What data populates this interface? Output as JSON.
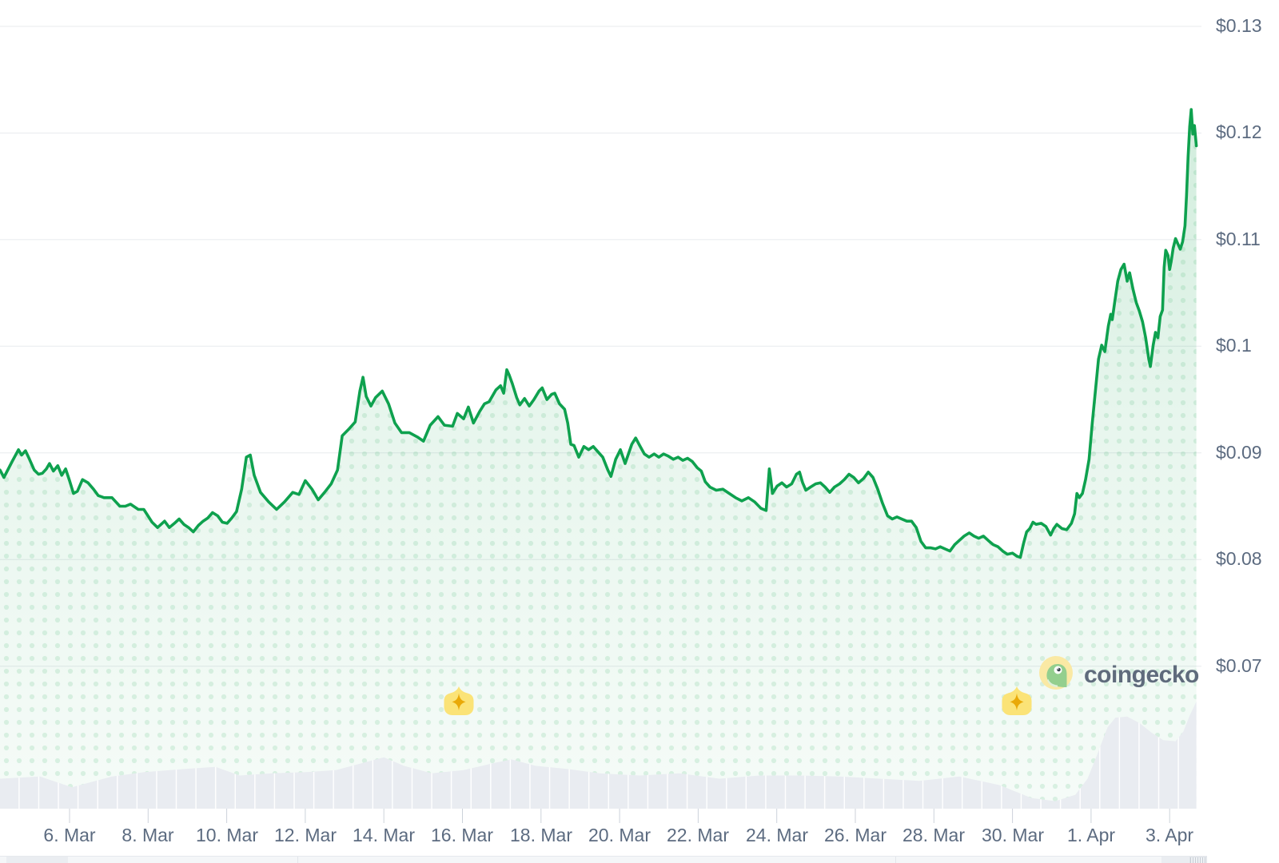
{
  "watermark": {
    "text": "coingecko"
  },
  "colors": {
    "line_green": "#0EA14E",
    "fill_green": "#15A350",
    "volume_gray": "#E9ECF1",
    "grid": "#E8EBEE",
    "tick": "#CCD2DA",
    "axis_text": "#5C6B80",
    "badge_yellow": "#FBE377",
    "badge_star": "#E9A908",
    "logo_circle": "#FAE9A4",
    "logo_gecko": "#93CF8E",
    "logo_text": "#5F6B7C"
  },
  "chart_data": {
    "type": "line",
    "title": "",
    "subtitle": "",
    "x_unit": "day of March (32 = 1 Apr, 34 = 3 Apr)",
    "y_unit": "USD price",
    "grid": "horizontal only",
    "legend": "none",
    "y_axis": {
      "labels": [
        "$0.13",
        "$0.12",
        "$0.11",
        "$0.1",
        "$0.09",
        "$0.08",
        "$0.07"
      ],
      "values": [
        0.13,
        0.12,
        0.11,
        0.1,
        0.09,
        0.08,
        0.07
      ],
      "range": [
        0.07,
        0.13
      ],
      "side": "right"
    },
    "x_axis": {
      "labels": [
        "6. Mar",
        "8. Mar",
        "10. Mar",
        "12. Mar",
        "14. Mar",
        "16. Mar",
        "18. Mar",
        "20. Mar",
        "22. Mar",
        "24. Mar",
        "26. Mar",
        "28. Mar",
        "30. Mar",
        "1. Apr",
        "3. Apr"
      ],
      "tick_days": [
        6,
        8,
        10,
        12,
        14,
        16,
        18,
        20,
        22,
        24,
        26,
        28,
        30,
        32,
        34
      ],
      "visible_day_range": [
        4.23,
        34.7
      ]
    },
    "price_series": [
      [
        4.23,
        0.0884
      ],
      [
        4.33,
        0.0877
      ],
      [
        4.54,
        0.0892
      ],
      [
        4.7,
        0.0903
      ],
      [
        4.78,
        0.0898
      ],
      [
        4.88,
        0.0902
      ],
      [
        4.98,
        0.0894
      ],
      [
        5.1,
        0.0884
      ],
      [
        5.21,
        0.088
      ],
      [
        5.31,
        0.0881
      ],
      [
        5.41,
        0.0885
      ],
      [
        5.49,
        0.089
      ],
      [
        5.59,
        0.0883
      ],
      [
        5.7,
        0.0888
      ],
      [
        5.8,
        0.0879
      ],
      [
        5.9,
        0.0885
      ],
      [
        6.0,
        0.0874
      ],
      [
        6.1,
        0.0862
      ],
      [
        6.2,
        0.0864
      ],
      [
        6.33,
        0.0875
      ],
      [
        6.47,
        0.0872
      ],
      [
        6.61,
        0.0866
      ],
      [
        6.73,
        0.086
      ],
      [
        6.88,
        0.0858
      ],
      [
        7.08,
        0.0858
      ],
      [
        7.28,
        0.085
      ],
      [
        7.42,
        0.085
      ],
      [
        7.55,
        0.0852
      ],
      [
        7.75,
        0.0847
      ],
      [
        7.89,
        0.0847
      ],
      [
        8.1,
        0.0835
      ],
      [
        8.24,
        0.083
      ],
      [
        8.42,
        0.0836
      ],
      [
        8.54,
        0.083
      ],
      [
        8.67,
        0.0834
      ],
      [
        8.79,
        0.0838
      ],
      [
        8.91,
        0.0833
      ],
      [
        9.03,
        0.083
      ],
      [
        9.15,
        0.0826
      ],
      [
        9.28,
        0.0832
      ],
      [
        9.4,
        0.0836
      ],
      [
        9.52,
        0.0839
      ],
      [
        9.64,
        0.0844
      ],
      [
        9.77,
        0.0841
      ],
      [
        9.89,
        0.0835
      ],
      [
        10.01,
        0.0834
      ],
      [
        10.13,
        0.0839
      ],
      [
        10.25,
        0.0845
      ],
      [
        10.38,
        0.0866
      ],
      [
        10.5,
        0.0896
      ],
      [
        10.6,
        0.0898
      ],
      [
        10.7,
        0.0879
      ],
      [
        10.86,
        0.0863
      ],
      [
        11.07,
        0.0854
      ],
      [
        11.27,
        0.0847
      ],
      [
        11.47,
        0.0854
      ],
      [
        11.68,
        0.0863
      ],
      [
        11.84,
        0.0861
      ],
      [
        12.0,
        0.0874
      ],
      [
        12.17,
        0.0866
      ],
      [
        12.33,
        0.0856
      ],
      [
        12.49,
        0.0863
      ],
      [
        12.66,
        0.0871
      ],
      [
        12.82,
        0.0884
      ],
      [
        12.94,
        0.0916
      ],
      [
        13.1,
        0.0922
      ],
      [
        13.27,
        0.0929
      ],
      [
        13.39,
        0.0958
      ],
      [
        13.47,
        0.0971
      ],
      [
        13.55,
        0.0953
      ],
      [
        13.67,
        0.0944
      ],
      [
        13.79,
        0.0952
      ],
      [
        13.96,
        0.0958
      ],
      [
        14.12,
        0.0946
      ],
      [
        14.28,
        0.0928
      ],
      [
        14.45,
        0.0919
      ],
      [
        14.65,
        0.0919
      ],
      [
        14.85,
        0.0915
      ],
      [
        15.01,
        0.0911
      ],
      [
        15.18,
        0.0926
      ],
      [
        15.38,
        0.0934
      ],
      [
        15.54,
        0.0926
      ],
      [
        15.75,
        0.0925
      ],
      [
        15.87,
        0.0937
      ],
      [
        16.03,
        0.0932
      ],
      [
        16.15,
        0.0943
      ],
      [
        16.28,
        0.0928
      ],
      [
        16.44,
        0.0939
      ],
      [
        16.56,
        0.0946
      ],
      [
        16.68,
        0.0948
      ],
      [
        16.85,
        0.0959
      ],
      [
        16.97,
        0.0963
      ],
      [
        17.05,
        0.0956
      ],
      [
        17.13,
        0.0978
      ],
      [
        17.19,
        0.0973
      ],
      [
        17.27,
        0.0965
      ],
      [
        17.38,
        0.0952
      ],
      [
        17.46,
        0.0945
      ],
      [
        17.58,
        0.0951
      ],
      [
        17.7,
        0.0944
      ],
      [
        17.82,
        0.095
      ],
      [
        17.95,
        0.0958
      ],
      [
        18.03,
        0.0961
      ],
      [
        18.15,
        0.095
      ],
      [
        18.27,
        0.0955
      ],
      [
        18.35,
        0.0956
      ],
      [
        18.47,
        0.0946
      ],
      [
        18.6,
        0.0941
      ],
      [
        18.68,
        0.0928
      ],
      [
        18.76,
        0.0908
      ],
      [
        18.84,
        0.0907
      ],
      [
        18.96,
        0.0896
      ],
      [
        19.09,
        0.0906
      ],
      [
        19.21,
        0.0903
      ],
      [
        19.33,
        0.0906
      ],
      [
        19.45,
        0.0901
      ],
      [
        19.57,
        0.0896
      ],
      [
        19.7,
        0.0884
      ],
      [
        19.78,
        0.0878
      ],
      [
        19.9,
        0.0894
      ],
      [
        20.02,
        0.0903
      ],
      [
        20.14,
        0.089
      ],
      [
        20.31,
        0.0908
      ],
      [
        20.41,
        0.0914
      ],
      [
        20.51,
        0.0907
      ],
      [
        20.63,
        0.0899
      ],
      [
        20.75,
        0.0896
      ],
      [
        20.88,
        0.0899
      ],
      [
        21.0,
        0.0896
      ],
      [
        21.12,
        0.0899
      ],
      [
        21.24,
        0.0897
      ],
      [
        21.37,
        0.0894
      ],
      [
        21.49,
        0.0896
      ],
      [
        21.61,
        0.0893
      ],
      [
        21.73,
        0.0895
      ],
      [
        21.85,
        0.0892
      ],
      [
        21.98,
        0.0886
      ],
      [
        22.08,
        0.0883
      ],
      [
        22.18,
        0.0873
      ],
      [
        22.3,
        0.0868
      ],
      [
        22.46,
        0.0865
      ],
      [
        22.63,
        0.0866
      ],
      [
        22.79,
        0.0862
      ],
      [
        22.95,
        0.0858
      ],
      [
        23.11,
        0.0855
      ],
      [
        23.28,
        0.0858
      ],
      [
        23.44,
        0.0854
      ],
      [
        23.6,
        0.0848
      ],
      [
        23.73,
        0.0846
      ],
      [
        23.81,
        0.0885
      ],
      [
        23.85,
        0.0875
      ],
      [
        23.89,
        0.0862
      ],
      [
        24.01,
        0.0869
      ],
      [
        24.13,
        0.0872
      ],
      [
        24.25,
        0.0868
      ],
      [
        24.38,
        0.0871
      ],
      [
        24.5,
        0.088
      ],
      [
        24.58,
        0.0882
      ],
      [
        24.66,
        0.0872
      ],
      [
        24.74,
        0.0865
      ],
      [
        24.86,
        0.0868
      ],
      [
        24.99,
        0.0871
      ],
      [
        25.11,
        0.0872
      ],
      [
        25.23,
        0.0868
      ],
      [
        25.35,
        0.0863
      ],
      [
        25.47,
        0.0868
      ],
      [
        25.6,
        0.0871
      ],
      [
        25.72,
        0.0875
      ],
      [
        25.84,
        0.088
      ],
      [
        25.96,
        0.0877
      ],
      [
        26.08,
        0.0872
      ],
      [
        26.21,
        0.0876
      ],
      [
        26.33,
        0.0882
      ],
      [
        26.45,
        0.0877
      ],
      [
        26.57,
        0.0866
      ],
      [
        26.69,
        0.0853
      ],
      [
        26.82,
        0.0841
      ],
      [
        26.94,
        0.0838
      ],
      [
        27.06,
        0.084
      ],
      [
        27.18,
        0.0838
      ],
      [
        27.31,
        0.0836
      ],
      [
        27.43,
        0.0836
      ],
      [
        27.55,
        0.083
      ],
      [
        27.67,
        0.0817
      ],
      [
        27.79,
        0.0811
      ],
      [
        27.92,
        0.0811
      ],
      [
        28.04,
        0.081
      ],
      [
        28.16,
        0.0812
      ],
      [
        28.28,
        0.081
      ],
      [
        28.41,
        0.0808
      ],
      [
        28.53,
        0.0814
      ],
      [
        28.65,
        0.0818
      ],
      [
        28.77,
        0.0822
      ],
      [
        28.9,
        0.0825
      ],
      [
        29.02,
        0.0822
      ],
      [
        29.14,
        0.082
      ],
      [
        29.26,
        0.0822
      ],
      [
        29.38,
        0.0818
      ],
      [
        29.51,
        0.0814
      ],
      [
        29.63,
        0.0812
      ],
      [
        29.75,
        0.0808
      ],
      [
        29.87,
        0.0805
      ],
      [
        30.0,
        0.0806
      ],
      [
        30.12,
        0.0803
      ],
      [
        30.2,
        0.0802
      ],
      [
        30.28,
        0.0815
      ],
      [
        30.36,
        0.0826
      ],
      [
        30.44,
        0.0829
      ],
      [
        30.52,
        0.0835
      ],
      [
        30.6,
        0.0833
      ],
      [
        30.73,
        0.0834
      ],
      [
        30.85,
        0.0831
      ],
      [
        30.97,
        0.0823
      ],
      [
        31.05,
        0.0829
      ],
      [
        31.13,
        0.0833
      ],
      [
        31.26,
        0.0829
      ],
      [
        31.38,
        0.0828
      ],
      [
        31.5,
        0.0834
      ],
      [
        31.58,
        0.0843
      ],
      [
        31.64,
        0.0862
      ],
      [
        31.7,
        0.0858
      ],
      [
        31.78,
        0.0862
      ],
      [
        31.86,
        0.0875
      ],
      [
        31.95,
        0.0894
      ],
      [
        32.03,
        0.0928
      ],
      [
        32.11,
        0.0958
      ],
      [
        32.19,
        0.0988
      ],
      [
        32.27,
        0.1001
      ],
      [
        32.35,
        0.0995
      ],
      [
        32.44,
        0.1019
      ],
      [
        32.5,
        0.103
      ],
      [
        32.54,
        0.1025
      ],
      [
        32.6,
        0.1041
      ],
      [
        32.68,
        0.1061
      ],
      [
        32.76,
        0.1072
      ],
      [
        32.84,
        0.1077
      ],
      [
        32.92,
        0.1061
      ],
      [
        32.98,
        0.1069
      ],
      [
        33.07,
        0.1053
      ],
      [
        33.15,
        0.1041
      ],
      [
        33.23,
        0.1033
      ],
      [
        33.31,
        0.1023
      ],
      [
        33.39,
        0.1008
      ],
      [
        33.47,
        0.0988
      ],
      [
        33.51,
        0.0981
      ],
      [
        33.58,
        0.1001
      ],
      [
        33.64,
        0.1013
      ],
      [
        33.7,
        0.1008
      ],
      [
        33.76,
        0.1028
      ],
      [
        33.82,
        0.1034
      ],
      [
        33.86,
        0.1074
      ],
      [
        33.9,
        0.109
      ],
      [
        33.96,
        0.1085
      ],
      [
        34.0,
        0.1072
      ],
      [
        34.04,
        0.108
      ],
      [
        34.09,
        0.1092
      ],
      [
        34.15,
        0.1101
      ],
      [
        34.21,
        0.1096
      ],
      [
        34.27,
        0.1091
      ],
      [
        34.33,
        0.1098
      ],
      [
        34.39,
        0.1113
      ],
      [
        34.43,
        0.1141
      ],
      [
        34.47,
        0.1178
      ],
      [
        34.51,
        0.1206
      ],
      [
        34.55,
        0.1222
      ],
      [
        34.59,
        0.1199
      ],
      [
        34.63,
        0.1207
      ],
      [
        34.68,
        0.1188
      ]
    ],
    "volume_series_note": "relative volume 0-1 (no axis labels shown in chart)",
    "volume_series": [
      [
        4.23,
        0.28
      ],
      [
        5.25,
        0.3
      ],
      [
        6.06,
        0.2
      ],
      [
        6.47,
        0.24
      ],
      [
        7.08,
        0.3
      ],
      [
        7.89,
        0.34
      ],
      [
        8.91,
        0.37
      ],
      [
        9.72,
        0.39
      ],
      [
        10.33,
        0.31
      ],
      [
        11.15,
        0.33
      ],
      [
        11.96,
        0.34
      ],
      [
        12.78,
        0.36
      ],
      [
        13.39,
        0.42
      ],
      [
        14.0,
        0.48
      ],
      [
        14.51,
        0.4
      ],
      [
        15.22,
        0.33
      ],
      [
        16.03,
        0.36
      ],
      [
        16.85,
        0.43
      ],
      [
        17.25,
        0.46
      ],
      [
        17.86,
        0.4
      ],
      [
        18.68,
        0.37
      ],
      [
        19.49,
        0.33
      ],
      [
        20.51,
        0.31
      ],
      [
        21.52,
        0.33
      ],
      [
        22.54,
        0.28
      ],
      [
        23.56,
        0.31
      ],
      [
        24.58,
        0.31
      ],
      [
        25.6,
        0.3
      ],
      [
        26.61,
        0.28
      ],
      [
        27.63,
        0.26
      ],
      [
        28.65,
        0.3
      ],
      [
        29.67,
        0.22
      ],
      [
        30.48,
        0.1
      ],
      [
        31.09,
        0.07
      ],
      [
        31.6,
        0.13
      ],
      [
        31.91,
        0.28
      ],
      [
        32.15,
        0.5
      ],
      [
        32.42,
        0.76
      ],
      [
        32.62,
        0.85
      ],
      [
        32.92,
        0.86
      ],
      [
        33.23,
        0.8
      ],
      [
        33.54,
        0.71
      ],
      [
        33.84,
        0.64
      ],
      [
        34.15,
        0.63
      ],
      [
        34.35,
        0.72
      ],
      [
        34.51,
        0.87
      ],
      [
        34.68,
        1.0
      ]
    ],
    "markers": [
      {
        "day": 15.9,
        "type": "star-badge"
      },
      {
        "day": 30.1,
        "type": "star-badge"
      }
    ]
  }
}
